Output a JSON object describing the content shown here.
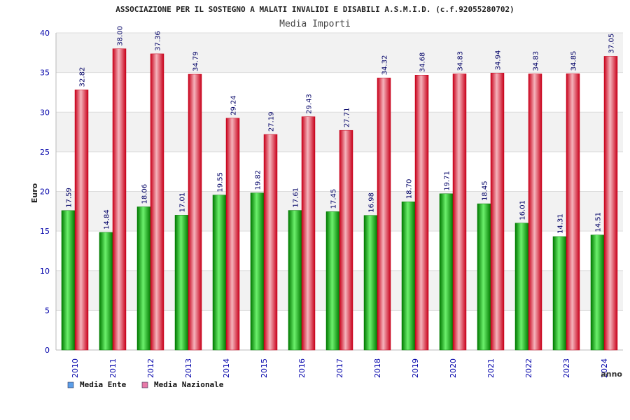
{
  "chart_data": {
    "type": "bar",
    "title": "ASSOCIAZIONE PER IL SOSTEGNO A MALATI INVALIDI E DISABILI A.S.M.I.D. (c.f.92055280702)",
    "subtitle": "Media Importi",
    "xlabel": "anno",
    "ylabel": "Euro",
    "ylim": [
      0,
      40
    ],
    "yticks": [
      0,
      5,
      10,
      15,
      20,
      25,
      30,
      35,
      40
    ],
    "grid": true,
    "legend_position": "bottom-left",
    "categories": [
      "2010",
      "2011",
      "2012",
      "2013",
      "2014",
      "2015",
      "2016",
      "2017",
      "2018",
      "2019",
      "2020",
      "2021",
      "2022",
      "2023",
      "2024"
    ],
    "series": [
      {
        "name": "Media Ente",
        "values": [
          17.59,
          14.84,
          18.06,
          17.01,
          19.55,
          19.82,
          17.61,
          17.45,
          16.98,
          18.7,
          19.71,
          18.45,
          16.01,
          14.31,
          14.51
        ],
        "labels": [
          "17.59",
          "14.84",
          "18.06",
          "17.01",
          "19.55",
          "19.82",
          "17.61",
          "17.45",
          "16.98",
          "18.70",
          "19.71",
          "18.45",
          "16.01",
          "14.31",
          "14.51"
        ]
      },
      {
        "name": "Media Nazionale",
        "values": [
          32.82,
          38.0,
          37.36,
          34.79,
          29.24,
          27.19,
          29.43,
          27.71,
          34.32,
          34.68,
          34.83,
          34.94,
          34.83,
          34.85,
          37.05
        ],
        "labels": [
          "32.82",
          "38.00",
          "37.36",
          "34.79",
          "29.24",
          "27.19",
          "29.43",
          "27.71",
          "34.32",
          "34.68",
          "34.83",
          "34.94",
          "34.83",
          "34.85",
          "37.05"
        ]
      }
    ]
  },
  "colors": {
    "ente_bar": "#00b400",
    "ente_bar_light": "#6cf06c",
    "ente_bar_dark": "#007a00",
    "nazionale_bar": "#ee1c2e",
    "nazionale_bar_light": "#f5b4bc",
    "nazionale_bar_dark": "#c8001a",
    "legend_ente": "#5b9ee8",
    "legend_nazionale": "#e87aa8",
    "axis_text": "#0000aa",
    "value_text": "#000066",
    "band": "#f2f2f2"
  }
}
